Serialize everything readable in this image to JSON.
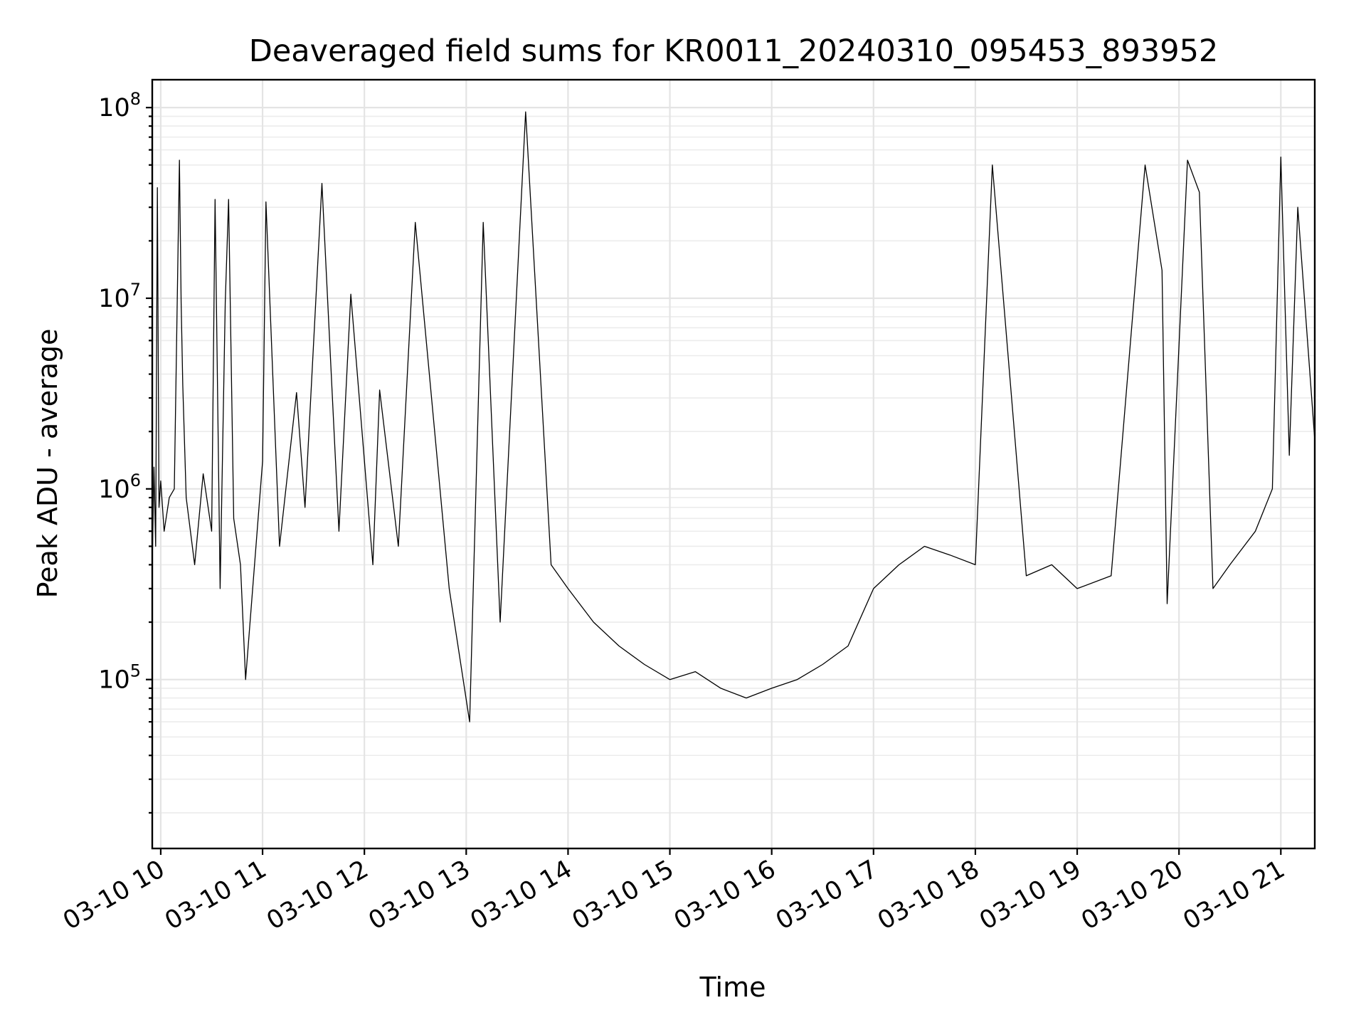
{
  "chart_data": {
    "type": "line",
    "title": "Deaveraged field sums for KR0011_20240310_095453_893952",
    "xlabel": "Time",
    "ylabel": "Peak ADU - average",
    "yscale": "log",
    "grid": true,
    "legend": "none",
    "line_color": "#000000",
    "grid_color": "#e4e4e4",
    "xlim": [
      "2024-03-10 09:55",
      "2024-03-10 21:20"
    ],
    "ylim": [
      13000,
      140000000
    ],
    "x_ticks": [
      {
        "value": "2024-03-10 10:00",
        "label": "03-10 10"
      },
      {
        "value": "2024-03-10 11:00",
        "label": "03-10 11"
      },
      {
        "value": "2024-03-10 12:00",
        "label": "03-10 12"
      },
      {
        "value": "2024-03-10 13:00",
        "label": "03-10 13"
      },
      {
        "value": "2024-03-10 14:00",
        "label": "03-10 14"
      },
      {
        "value": "2024-03-10 15:00",
        "label": "03-10 15"
      },
      {
        "value": "2024-03-10 16:00",
        "label": "03-10 16"
      },
      {
        "value": "2024-03-10 17:00",
        "label": "03-10 17"
      },
      {
        "value": "2024-03-10 18:00",
        "label": "03-10 18"
      },
      {
        "value": "2024-03-10 19:00",
        "label": "03-10 19"
      },
      {
        "value": "2024-03-10 20:00",
        "label": "03-10 20"
      },
      {
        "value": "2024-03-10 21:00",
        "label": "03-10 21"
      }
    ],
    "y_ticks": [
      {
        "value": 100000,
        "base": "10",
        "exp": "5"
      },
      {
        "value": 1000000,
        "base": "10",
        "exp": "6"
      },
      {
        "value": 10000000,
        "base": "10",
        "exp": "7"
      },
      {
        "value": 100000000,
        "base": "10",
        "exp": "8"
      }
    ],
    "series": [
      {
        "x": [
          "2024-03-10 09:55",
          "2024-03-10 09:56",
          "2024-03-10 09:57",
          "2024-03-10 09:58",
          "2024-03-10 09:59",
          "2024-03-10 10:00",
          "2024-03-10 10:02",
          "2024-03-10 10:05",
          "2024-03-10 10:08",
          "2024-03-10 10:11",
          "2024-03-10 10:12",
          "2024-03-10 10:13",
          "2024-03-10 10:15",
          "2024-03-10 10:20",
          "2024-03-10 10:25",
          "2024-03-10 10:30",
          "2024-03-10 10:32",
          "2024-03-10 10:35",
          "2024-03-10 10:38",
          "2024-03-10 10:40",
          "2024-03-10 10:43",
          "2024-03-10 10:47",
          "2024-03-10 10:50",
          "2024-03-10 11:00",
          "2024-03-10 11:02",
          "2024-03-10 11:10",
          "2024-03-10 11:20",
          "2024-03-10 11:25",
          "2024-03-10 11:35",
          "2024-03-10 11:45",
          "2024-03-10 11:52",
          "2024-03-10 12:05",
          "2024-03-10 12:09",
          "2024-03-10 12:20",
          "2024-03-10 12:30",
          "2024-03-10 12:50",
          "2024-03-10 13:02",
          "2024-03-10 13:10",
          "2024-03-10 13:20",
          "2024-03-10 13:35",
          "2024-03-10 13:50",
          "2024-03-10 14:00",
          "2024-03-10 14:15",
          "2024-03-10 14:30",
          "2024-03-10 14:45",
          "2024-03-10 15:00",
          "2024-03-10 15:15",
          "2024-03-10 15:30",
          "2024-03-10 15:45",
          "2024-03-10 16:00",
          "2024-03-10 16:15",
          "2024-03-10 16:30",
          "2024-03-10 16:45",
          "2024-03-10 17:00",
          "2024-03-10 17:15",
          "2024-03-10 17:30",
          "2024-03-10 17:45",
          "2024-03-10 18:00",
          "2024-03-10 18:10",
          "2024-03-10 18:30",
          "2024-03-10 18:45",
          "2024-03-10 19:00",
          "2024-03-10 19:20",
          "2024-03-10 19:40",
          "2024-03-10 19:50",
          "2024-03-10 19:53",
          "2024-03-10 20:05",
          "2024-03-10 20:12",
          "2024-03-10 20:20",
          "2024-03-10 20:30",
          "2024-03-10 20:45",
          "2024-03-10 20:55",
          "2024-03-10 21:00",
          "2024-03-10 21:05",
          "2024-03-10 21:10",
          "2024-03-10 21:20"
        ],
        "y": [
          400000,
          1300000,
          500000,
          38000000,
          800000,
          1100000,
          600000,
          900000,
          1000000,
          53000000,
          9500000,
          3500000,
          900000,
          400000,
          1200000,
          600000,
          33000000,
          300000,
          9500000,
          33000000,
          700000,
          400000,
          100000,
          1400000,
          32000000,
          500000,
          3200000,
          800000,
          40000000,
          600000,
          10500000,
          400000,
          3300000,
          500000,
          25000000,
          300000,
          60000,
          25000000,
          200000,
          95000000,
          400000,
          300000,
          200000,
          150000,
          120000,
          100000,
          110000,
          90000,
          80000,
          90000,
          100000,
          120000,
          150000,
          300000,
          400000,
          500000,
          450000,
          400000,
          50000000,
          350000,
          400000,
          300000,
          350000,
          50000000,
          14000000,
          250000,
          53000000,
          36000000,
          300000,
          400000,
          600000,
          1000000,
          55000000,
          1500000,
          30000000,
          1800000
        ]
      }
    ]
  }
}
